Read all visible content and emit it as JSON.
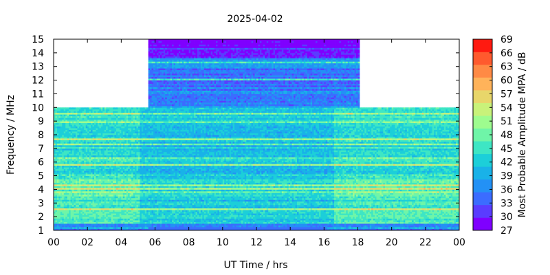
{
  "chart_data": {
    "type": "heatmap",
    "title": "2025-04-02",
    "xlabel": "UT Time / hrs",
    "ylabel": "Frequency / MHz",
    "colorbar_label": "Most Probable Amplitude MPA / dB",
    "xlim": [
      0,
      24
    ],
    "ylim": [
      1,
      15
    ],
    "x_tick_labels": [
      "00",
      "02",
      "04",
      "06",
      "08",
      "10",
      "12",
      "14",
      "16",
      "18",
      "20",
      "22",
      "00"
    ],
    "y_tick_labels": [
      "1",
      "2",
      "3",
      "4",
      "5",
      "6",
      "7",
      "8",
      "9",
      "10",
      "11",
      "12",
      "13",
      "14",
      "15"
    ],
    "colorbar": {
      "min": 27,
      "max": 69,
      "step": 3,
      "tick_labels": [
        "27",
        "30",
        "33",
        "36",
        "39",
        "42",
        "45",
        "48",
        "51",
        "54",
        "57",
        "60",
        "63",
        "66",
        "69"
      ],
      "colors": [
        "#7f00ff",
        "#5a3cff",
        "#3b6cff",
        "#2391f5",
        "#19b2e8",
        "#1ccfd9",
        "#3ee6c4",
        "#6ff5a8",
        "#9efc8f",
        "#c9f27a",
        "#e8d66a",
        "#ffb35a",
        "#ff8a45",
        "#ff5a2e",
        "#ff1a10"
      ]
    },
    "data_coverage": {
      "freq_range_0000_0530": [
        1,
        10
      ],
      "freq_range_0530_1800": [
        1,
        15
      ],
      "freq_range_1800_2400": [
        1,
        10
      ]
    }
  }
}
